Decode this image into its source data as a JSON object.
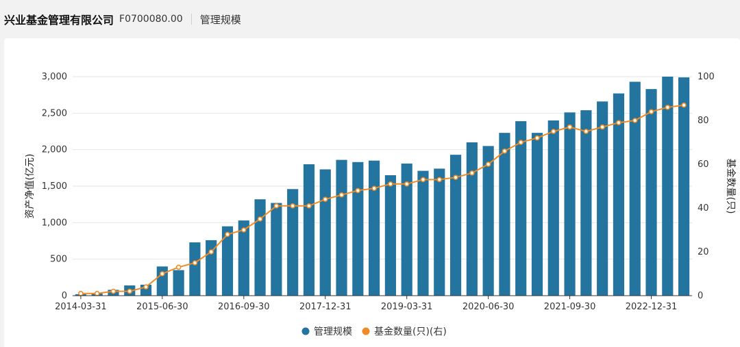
{
  "header": {
    "company": "兴业基金管理有限公司",
    "code": "F0700080.00",
    "metric": "管理规模"
  },
  "colors": {
    "bar": "#23749e",
    "line": "#ef8b27",
    "grid": "#e6e6e6"
  },
  "chart_data": {
    "type": "bar",
    "title": "",
    "xlabel": "",
    "ylabel": "资产净值(亿元)",
    "y2label": "基金数量(只)",
    "ylim": [
      0,
      3000
    ],
    "y2lim": [
      0,
      100
    ],
    "yticks": [
      "3,000",
      "2,500",
      "2,000",
      "1,500",
      "1,000",
      "500",
      "0"
    ],
    "y2ticks": [
      "100",
      "80",
      "60",
      "40",
      "20",
      "0"
    ],
    "xticks": [
      "2014-03-31",
      "2015-06-30",
      "2016-09-30",
      "2017-12-31",
      "2019-03-31",
      "2020-06-30",
      "2021-09-30",
      "2022-12-31"
    ],
    "categories": [
      "2014-03-31",
      "2014-06-30",
      "2014-09-30",
      "2014-12-31",
      "2015-03-31",
      "2015-06-30",
      "2015-09-30",
      "2015-12-31",
      "2016-03-31",
      "2016-06-30",
      "2016-09-30",
      "2016-12-31",
      "2017-03-31",
      "2017-06-30",
      "2017-09-30",
      "2017-12-31",
      "2018-03-31",
      "2018-06-30",
      "2018-09-30",
      "2018-12-31",
      "2019-03-31",
      "2019-06-30",
      "2019-09-30",
      "2019-12-31",
      "2020-03-31",
      "2020-06-30",
      "2020-09-30",
      "2020-12-31",
      "2021-03-31",
      "2021-06-30",
      "2021-09-30",
      "2021-12-31",
      "2022-03-31",
      "2022-06-30",
      "2022-09-30",
      "2022-12-31",
      "2023-03-31",
      "2023-06-30"
    ],
    "series": [
      {
        "name": "管理规模",
        "axis": "left",
        "type": "bar",
        "values": [
          20,
          30,
          80,
          140,
          150,
          400,
          350,
          730,
          760,
          950,
          1030,
          1320,
          1270,
          1460,
          1800,
          1730,
          1860,
          1830,
          1850,
          1650,
          1810,
          1710,
          1740,
          1930,
          2100,
          2050,
          2230,
          2390,
          2230,
          2400,
          2510,
          2540,
          2660,
          2770,
          2930,
          2830,
          3000,
          2990
        ]
      },
      {
        "name": "基金数量(只)(右)",
        "axis": "right",
        "type": "line",
        "values": [
          1,
          1,
          2,
          2,
          4,
          10,
          13,
          15,
          20,
          28,
          30,
          35,
          41,
          41,
          41,
          44,
          46,
          48,
          49,
          51,
          51,
          53,
          53,
          54,
          56,
          60,
          66,
          70,
          72,
          75,
          77,
          75,
          77,
          79,
          80,
          84,
          86,
          87
        ]
      }
    ],
    "legend": [
      {
        "label": "管理规模",
        "series": 0
      },
      {
        "label": "基金数量(只)(右)",
        "series": 1
      }
    ],
    "legend_position": "bottom-center",
    "grid": true
  }
}
